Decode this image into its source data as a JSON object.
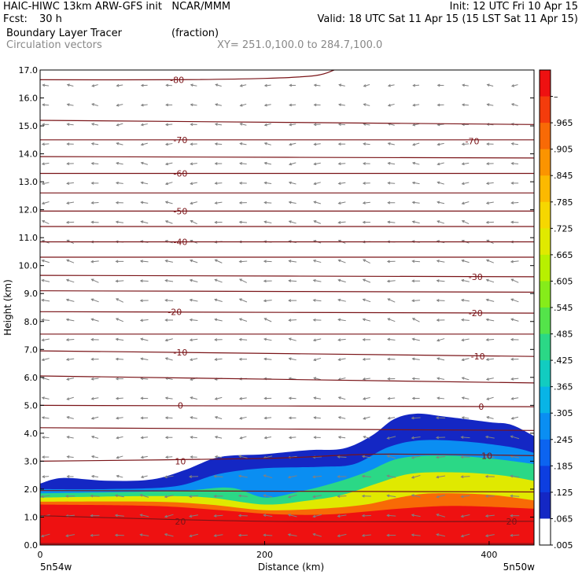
{
  "header": {
    "model_line": "HAIC-HIWC 13km ARW-GFS init   NCAR/MMM",
    "init_line": "Init: 12 UTC Fri 10 Apr 15",
    "fcst_label": "Fcst:",
    "fcst_value": "30 h",
    "valid_line": "Valid: 18 UTC Sat 11 Apr 15 (15 LST Sat 11 Apr 15)",
    "field_name": "Boundary Layer Tracer",
    "field_units": "(fraction)",
    "vector_name": "Circulation vectors",
    "xsec_endpoints": "XY= 251.0,100.0 to 284.7,100.0"
  },
  "colors": {
    "contour": "#7a1418",
    "vector": "#808080",
    "text": "#000000",
    "muted_text": "#888888"
  },
  "chart_data": {
    "type": "heatmap",
    "xlabel": "Distance (km)",
    "ylabel": "Height (km)",
    "xlim": [
      0,
      440
    ],
    "ylim": [
      0,
      17
    ],
    "x_ticks": [
      0,
      200,
      400
    ],
    "x_tick_labels": [
      "0",
      "200",
      "400"
    ],
    "y_ticks": [
      0,
      1,
      2,
      3,
      4,
      5,
      6,
      7,
      8,
      9,
      10,
      11,
      12,
      13,
      14,
      15,
      16,
      17
    ],
    "y_tick_labels": [
      "0.0",
      "1.0",
      "2.0",
      "3.0",
      "4.0",
      "5.0",
      "6.0",
      "7.0",
      "8.0",
      "9.0",
      "10.0",
      "11.0",
      "12.0",
      "13.0",
      "14.0",
      "15.0",
      "16.0",
      "17.0"
    ],
    "x_endpoint_labels": {
      "left": "5n54w",
      "right": "5n50w"
    },
    "colorbar": {
      "labels": [
        "–",
        ".965",
        ".905",
        ".845",
        ".785",
        ".725",
        ".665",
        ".605",
        ".545",
        ".485",
        ".425",
        ".365",
        ".305",
        ".245",
        ".185",
        ".125",
        ".065",
        ".005"
      ],
      "colors": [
        "#ee1111",
        "#f43c0c",
        "#f86a06",
        "#fb9400",
        "#fcb900",
        "#f6d700",
        "#e0e900",
        "#b8f000",
        "#86ec1a",
        "#54e44a",
        "#2bd886",
        "#12ccc0",
        "#08b4e6",
        "#0a8ef2",
        "#0c64f0",
        "#0d3ee0",
        "#1427c4"
      ]
    },
    "tracer_top_km": [
      {
        "x": 0,
        "h": 2.2
      },
      {
        "x": 20,
        "h": 2.4
      },
      {
        "x": 60,
        "h": 2.3
      },
      {
        "x": 100,
        "h": 2.35
      },
      {
        "x": 130,
        "h": 2.7
      },
      {
        "x": 160,
        "h": 3.15
      },
      {
        "x": 200,
        "h": 3.25
      },
      {
        "x": 240,
        "h": 3.4
      },
      {
        "x": 270,
        "h": 3.45
      },
      {
        "x": 295,
        "h": 3.9
      },
      {
        "x": 315,
        "h": 4.5
      },
      {
        "x": 335,
        "h": 4.7
      },
      {
        "x": 360,
        "h": 4.6
      },
      {
        "x": 400,
        "h": 4.4
      },
      {
        "x": 420,
        "h": 4.3
      },
      {
        "x": 440,
        "h": 3.9
      }
    ],
    "tracer_bands": [
      {
        "value": 0.185,
        "top": [
          {
            "x": 0,
            "h": 2.0
          },
          {
            "x": 60,
            "h": 2.0
          },
          {
            "x": 120,
            "h": 2.1
          },
          {
            "x": 160,
            "h": 2.55
          },
          {
            "x": 200,
            "h": 2.75
          },
          {
            "x": 250,
            "h": 2.8
          },
          {
            "x": 280,
            "h": 2.9
          },
          {
            "x": 310,
            "h": 3.5
          },
          {
            "x": 340,
            "h": 3.75
          },
          {
            "x": 380,
            "h": 3.7
          },
          {
            "x": 420,
            "h": 3.5
          },
          {
            "x": 440,
            "h": 3.3
          }
        ]
      },
      {
        "value": 0.365,
        "top": [
          {
            "x": 0,
            "h": 1.85
          },
          {
            "x": 80,
            "h": 1.9
          },
          {
            "x": 130,
            "h": 1.95
          },
          {
            "x": 170,
            "h": 2.05
          },
          {
            "x": 200,
            "h": 1.7
          },
          {
            "x": 230,
            "h": 1.9
          },
          {
            "x": 260,
            "h": 2.2
          },
          {
            "x": 290,
            "h": 2.6
          },
          {
            "x": 320,
            "h": 3.1
          },
          {
            "x": 360,
            "h": 3.2
          },
          {
            "x": 400,
            "h": 3.1
          },
          {
            "x": 440,
            "h": 2.9
          }
        ]
      },
      {
        "value": 0.605,
        "top": [
          {
            "x": 0,
            "h": 1.7
          },
          {
            "x": 100,
            "h": 1.75
          },
          {
            "x": 150,
            "h": 1.7
          },
          {
            "x": 200,
            "h": 1.45
          },
          {
            "x": 240,
            "h": 1.6
          },
          {
            "x": 270,
            "h": 1.8
          },
          {
            "x": 300,
            "h": 2.2
          },
          {
            "x": 330,
            "h": 2.55
          },
          {
            "x": 370,
            "h": 2.6
          },
          {
            "x": 410,
            "h": 2.5
          },
          {
            "x": 440,
            "h": 2.3
          }
        ]
      },
      {
        "value": 0.845,
        "top": [
          {
            "x": 0,
            "h": 1.55
          },
          {
            "x": 100,
            "h": 1.55
          },
          {
            "x": 150,
            "h": 1.45
          },
          {
            "x": 200,
            "h": 1.25
          },
          {
            "x": 250,
            "h": 1.3
          },
          {
            "x": 290,
            "h": 1.45
          },
          {
            "x": 320,
            "h": 1.7
          },
          {
            "x": 350,
            "h": 1.85
          },
          {
            "x": 400,
            "h": 1.8
          },
          {
            "x": 440,
            "h": 1.6
          }
        ]
      },
      {
        "value": 0.965,
        "top": [
          {
            "x": 0,
            "h": 1.45
          },
          {
            "x": 100,
            "h": 1.4
          },
          {
            "x": 160,
            "h": 1.25
          },
          {
            "x": 210,
            "h": 1.1
          },
          {
            "x": 260,
            "h": 1.1
          },
          {
            "x": 320,
            "h": 1.3
          },
          {
            "x": 370,
            "h": 1.4
          },
          {
            "x": 440,
            "h": 1.3
          }
        ]
      }
    ],
    "contours": [
      {
        "label": "-80",
        "points": [
          {
            "x": 0,
            "h": 16.65
          },
          {
            "x": 120,
            "h": 16.65
          },
          {
            "x": 200,
            "h": 16.7
          },
          {
            "x": 245,
            "h": 16.8
          },
          {
            "x": 262,
            "h": 17.0
          }
        ],
        "label_at": [
          {
            "x": 122,
            "h": 16.65
          }
        ]
      },
      {
        "label": "",
        "points": [
          {
            "x": 0,
            "h": 15.2
          },
          {
            "x": 440,
            "h": 15.05
          }
        ],
        "label_at": []
      },
      {
        "label": "-70",
        "points": [
          {
            "x": 0,
            "h": 14.5
          },
          {
            "x": 200,
            "h": 14.5
          },
          {
            "x": 440,
            "h": 14.5
          }
        ],
        "label_at": [
          {
            "x": 125,
            "h": 14.5
          },
          {
            "x": 385,
            "h": 14.45
          }
        ]
      },
      {
        "label": "",
        "points": [
          {
            "x": 0,
            "h": 13.9
          },
          {
            "x": 440,
            "h": 13.85
          }
        ],
        "label_at": []
      },
      {
        "label": "-60",
        "points": [
          {
            "x": 0,
            "h": 13.3
          },
          {
            "x": 440,
            "h": 13.3
          }
        ],
        "label_at": [
          {
            "x": 125,
            "h": 13.3
          }
        ]
      },
      {
        "label": "",
        "points": [
          {
            "x": 0,
            "h": 12.6
          },
          {
            "x": 440,
            "h": 12.6
          }
        ],
        "label_at": []
      },
      {
        "label": "-50",
        "points": [
          {
            "x": 0,
            "h": 11.95
          },
          {
            "x": 440,
            "h": 11.95
          }
        ],
        "label_at": [
          {
            "x": 125,
            "h": 11.95
          }
        ]
      },
      {
        "label": "",
        "points": [
          {
            "x": 0,
            "h": 11.4
          },
          {
            "x": 440,
            "h": 11.4
          }
        ],
        "label_at": []
      },
      {
        "label": "-40",
        "points": [
          {
            "x": 0,
            "h": 10.85
          },
          {
            "x": 440,
            "h": 10.85
          }
        ],
        "label_at": [
          {
            "x": 125,
            "h": 10.85
          }
        ]
      },
      {
        "label": "",
        "points": [
          {
            "x": 0,
            "h": 10.3
          },
          {
            "x": 440,
            "h": 10.3
          }
        ],
        "label_at": []
      },
      {
        "label": "-30",
        "points": [
          {
            "x": 0,
            "h": 9.65
          },
          {
            "x": 440,
            "h": 9.6
          }
        ],
        "label_at": [
          {
            "x": 388,
            "h": 9.6
          }
        ]
      },
      {
        "label": "",
        "points": [
          {
            "x": 0,
            "h": 9.1
          },
          {
            "x": 440,
            "h": 9.05
          }
        ],
        "label_at": []
      },
      {
        "label": "-20",
        "points": [
          {
            "x": 0,
            "h": 8.35
          },
          {
            "x": 440,
            "h": 8.3
          }
        ],
        "label_at": [
          {
            "x": 120,
            "h": 8.35
          },
          {
            "x": 388,
            "h": 8.3
          }
        ]
      },
      {
        "label": "",
        "points": [
          {
            "x": 0,
            "h": 7.55
          },
          {
            "x": 440,
            "h": 7.55
          }
        ],
        "label_at": []
      },
      {
        "label": "-10",
        "points": [
          {
            "x": 0,
            "h": 6.95
          },
          {
            "x": 440,
            "h": 6.75
          }
        ],
        "label_at": [
          {
            "x": 125,
            "h": 6.9
          },
          {
            "x": 390,
            "h": 6.75
          }
        ]
      },
      {
        "label": "",
        "points": [
          {
            "x": 0,
            "h": 6.05
          },
          {
            "x": 440,
            "h": 5.8
          }
        ],
        "label_at": []
      },
      {
        "label": "0",
        "points": [
          {
            "x": 0,
            "h": 5.0
          },
          {
            "x": 440,
            "h": 4.95
          }
        ],
        "label_at": [
          {
            "x": 125,
            "h": 5.0
          },
          {
            "x": 393,
            "h": 4.95
          }
        ]
      },
      {
        "label": "",
        "points": [
          {
            "x": 0,
            "h": 4.2
          },
          {
            "x": 440,
            "h": 4.1
          }
        ],
        "label_at": []
      },
      {
        "label": "10",
        "points": [
          {
            "x": 0,
            "h": 3.0
          },
          {
            "x": 200,
            "h": 3.1
          },
          {
            "x": 300,
            "h": 3.25
          },
          {
            "x": 440,
            "h": 3.2
          }
        ],
        "label_at": [
          {
            "x": 125,
            "h": 3.0
          },
          {
            "x": 398,
            "h": 3.2
          }
        ]
      },
      {
        "label": "",
        "points": [
          {
            "x": 0,
            "h": 1.95
          },
          {
            "x": 440,
            "h": 1.9
          }
        ],
        "label_at": []
      },
      {
        "label": "20",
        "points": [
          {
            "x": 0,
            "h": 1.05
          },
          {
            "x": 200,
            "h": 0.85
          },
          {
            "x": 440,
            "h": 0.85
          }
        ],
        "label_at": [
          {
            "x": 125,
            "h": 0.85
          },
          {
            "x": 420,
            "h": 0.85
          }
        ]
      },
      {
        "label": "",
        "points": [
          {
            "x": 0,
            "h": 0.05
          },
          {
            "x": 440,
            "h": 0.05
          }
        ],
        "label_at": []
      }
    ],
    "vector_grid": {
      "x_start": 5,
      "x_step": 22,
      "x_count": 20,
      "h_start": 0.35,
      "h_step": 0.7,
      "h_count": 24
    }
  }
}
